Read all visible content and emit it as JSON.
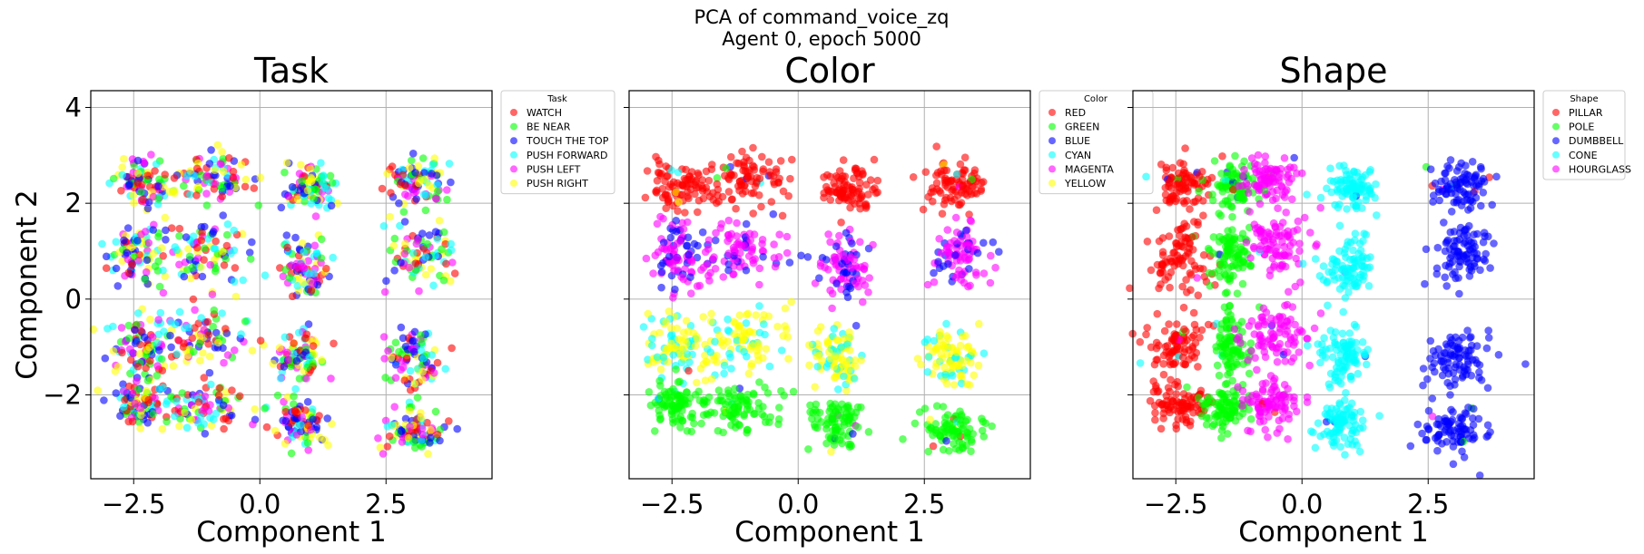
{
  "suptitle_line1": "PCA of command_voice_zq",
  "suptitle_line2": "Agent 0, epoch 5000",
  "chart_data": [
    {
      "type": "scatter",
      "title": "Task",
      "xlabel": "Component 1",
      "ylabel": "Component 2",
      "xlim": [
        -3.35,
        4.6
      ],
      "ylim": [
        -3.75,
        4.35
      ],
      "xticks": [
        -2.5,
        0.0,
        2.5
      ],
      "xtick_labels": [
        "−2.5",
        "0.0",
        "2.5"
      ],
      "yticks": [
        -2,
        0,
        2,
        4
      ],
      "ytick_labels": [
        "−2",
        "0",
        "2",
        "4"
      ],
      "grid": true,
      "legend_title": "Task",
      "legend_position": "outside-right",
      "series": [
        {
          "name": "WATCH",
          "color": "#ff0000"
        },
        {
          "name": "BE NEAR",
          "color": "#00ff00"
        },
        {
          "name": "TOUCH THE TOP",
          "color": "#0000ff"
        },
        {
          "name": "PUSH FORWARD",
          "color": "#00ffff"
        },
        {
          "name": "PUSH LEFT",
          "color": "#ff00ff"
        },
        {
          "name": "PUSH RIGHT",
          "color": "#ffff00"
        }
      ],
      "clusters": [
        {
          "x": -2.3,
          "y": 2.4,
          "sx": 0.3,
          "sy": 0.25
        },
        {
          "x": -1.0,
          "y": 2.5,
          "sx": 0.45,
          "sy": 0.28
        },
        {
          "x": 1.0,
          "y": 2.3,
          "sx": 0.25,
          "sy": 0.25
        },
        {
          "x": 3.1,
          "y": 2.4,
          "sx": 0.3,
          "sy": 0.25
        },
        {
          "x": -2.4,
          "y": 0.9,
          "sx": 0.3,
          "sy": 0.35
        },
        {
          "x": -1.1,
          "y": 1.0,
          "sx": 0.45,
          "sy": 0.35
        },
        {
          "x": 0.9,
          "y": 0.65,
          "sx": 0.25,
          "sy": 0.35
        },
        {
          "x": 3.2,
          "y": 0.95,
          "sx": 0.3,
          "sy": 0.35
        },
        {
          "x": -2.4,
          "y": -1.0,
          "sx": 0.3,
          "sy": 0.35
        },
        {
          "x": -1.1,
          "y": -0.85,
          "sx": 0.45,
          "sy": 0.35
        },
        {
          "x": 0.8,
          "y": -1.2,
          "sx": 0.25,
          "sy": 0.3
        },
        {
          "x": 3.1,
          "y": -1.25,
          "sx": 0.3,
          "sy": 0.3
        },
        {
          "x": -2.4,
          "y": -2.2,
          "sx": 0.3,
          "sy": 0.25
        },
        {
          "x": -1.2,
          "y": -2.25,
          "sx": 0.45,
          "sy": 0.25
        },
        {
          "x": 0.8,
          "y": -2.6,
          "sx": 0.25,
          "sy": 0.25
        },
        {
          "x": 3.0,
          "y": -2.75,
          "sx": 0.3,
          "sy": 0.25
        }
      ]
    },
    {
      "type": "scatter",
      "title": "Color",
      "xlabel": "Component 1",
      "ylabel": "",
      "xlim": [
        -3.35,
        4.6
      ],
      "ylim": [
        -3.75,
        4.35
      ],
      "xticks": [
        -2.5,
        0.0,
        2.5
      ],
      "xtick_labels": [
        "−2.5",
        "0.0",
        "2.5"
      ],
      "yticks": [
        -2,
        0,
        2,
        4
      ],
      "ytick_labels": [],
      "grid": true,
      "legend_title": "Color",
      "legend_position": "outside-right",
      "series": [
        {
          "name": "RED",
          "color": "#ff0000"
        },
        {
          "name": "GREEN",
          "color": "#00ff00"
        },
        {
          "name": "BLUE",
          "color": "#0000ff"
        },
        {
          "name": "CYAN",
          "color": "#00ffff"
        },
        {
          "name": "MAGENTA",
          "color": "#ff00ff"
        },
        {
          "name": "YELLOW",
          "color": "#ffff00"
        }
      ],
      "clusters": [
        {
          "x": -2.3,
          "y": 2.4,
          "sx": 0.3,
          "sy": 0.25,
          "c": [
            "RED"
          ]
        },
        {
          "x": -1.0,
          "y": 2.5,
          "sx": 0.45,
          "sy": 0.28,
          "c": [
            "RED"
          ]
        },
        {
          "x": 1.0,
          "y": 2.3,
          "sx": 0.25,
          "sy": 0.25,
          "c": [
            "RED"
          ]
        },
        {
          "x": 3.1,
          "y": 2.4,
          "sx": 0.3,
          "sy": 0.25,
          "c": [
            "RED"
          ]
        },
        {
          "x": -2.4,
          "y": 0.9,
          "sx": 0.3,
          "sy": 0.35,
          "c": [
            "MAGENTA",
            "BLUE"
          ]
        },
        {
          "x": -1.1,
          "y": 1.0,
          "sx": 0.45,
          "sy": 0.35,
          "c": [
            "MAGENTA",
            "BLUE"
          ]
        },
        {
          "x": 0.9,
          "y": 0.65,
          "sx": 0.25,
          "sy": 0.35,
          "c": [
            "MAGENTA",
            "BLUE"
          ]
        },
        {
          "x": 3.2,
          "y": 0.95,
          "sx": 0.3,
          "sy": 0.35,
          "c": [
            "MAGENTA",
            "BLUE"
          ]
        },
        {
          "x": -2.4,
          "y": -1.0,
          "sx": 0.3,
          "sy": 0.35,
          "c": [
            "YELLOW",
            "CYAN"
          ]
        },
        {
          "x": -1.1,
          "y": -0.85,
          "sx": 0.45,
          "sy": 0.35,
          "c": [
            "YELLOW",
            "CYAN"
          ]
        },
        {
          "x": 0.8,
          "y": -1.2,
          "sx": 0.25,
          "sy": 0.3,
          "c": [
            "YELLOW",
            "CYAN"
          ]
        },
        {
          "x": 3.1,
          "y": -1.25,
          "sx": 0.3,
          "sy": 0.3,
          "c": [
            "YELLOW",
            "CYAN"
          ]
        },
        {
          "x": -2.4,
          "y": -2.2,
          "sx": 0.3,
          "sy": 0.25,
          "c": [
            "GREEN"
          ]
        },
        {
          "x": -1.2,
          "y": -2.25,
          "sx": 0.45,
          "sy": 0.25,
          "c": [
            "GREEN"
          ]
        },
        {
          "x": 0.8,
          "y": -2.6,
          "sx": 0.25,
          "sy": 0.25,
          "c": [
            "GREEN"
          ]
        },
        {
          "x": 3.0,
          "y": -2.75,
          "sx": 0.3,
          "sy": 0.25,
          "c": [
            "GREEN"
          ]
        }
      ]
    },
    {
      "type": "scatter",
      "title": "Shape",
      "xlabel": "Component 1",
      "ylabel": "",
      "xlim": [
        -3.35,
        4.6
      ],
      "ylim": [
        -3.75,
        4.35
      ],
      "xticks": [
        -2.5,
        0.0,
        2.5
      ],
      "xtick_labels": [
        "−2.5",
        "0.0",
        "2.5"
      ],
      "yticks": [
        -2,
        0,
        2,
        4
      ],
      "ytick_labels": [],
      "grid": true,
      "legend_title": "Shape",
      "legend_position": "outside-right",
      "series": [
        {
          "name": "PILLAR",
          "color": "#ff0000"
        },
        {
          "name": "POLE",
          "color": "#00ff00"
        },
        {
          "name": "DUMBBELL",
          "color": "#0000ff"
        },
        {
          "name": "CONE",
          "color": "#00ffff"
        },
        {
          "name": "HOURGLASS",
          "color": "#ff00ff"
        }
      ],
      "clusters": [
        {
          "x": -2.3,
          "y": 2.4,
          "sx": 0.3,
          "sy": 0.25,
          "c": [
            "PILLAR"
          ]
        },
        {
          "x": -1.35,
          "y": 2.35,
          "sx": 0.2,
          "sy": 0.25,
          "c": [
            "POLE"
          ]
        },
        {
          "x": -0.6,
          "y": 2.5,
          "sx": 0.3,
          "sy": 0.25,
          "c": [
            "HOURGLASS"
          ]
        },
        {
          "x": 1.0,
          "y": 2.3,
          "sx": 0.25,
          "sy": 0.25,
          "c": [
            "CONE"
          ]
        },
        {
          "x": 3.1,
          "y": 2.4,
          "sx": 0.3,
          "sy": 0.25,
          "c": [
            "DUMBBELL"
          ]
        },
        {
          "x": -2.4,
          "y": 0.9,
          "sx": 0.3,
          "sy": 0.35,
          "c": [
            "PILLAR"
          ]
        },
        {
          "x": -1.4,
          "y": 0.9,
          "sx": 0.2,
          "sy": 0.35,
          "c": [
            "POLE"
          ]
        },
        {
          "x": -0.5,
          "y": 1.1,
          "sx": 0.3,
          "sy": 0.35,
          "c": [
            "HOURGLASS"
          ]
        },
        {
          "x": 0.9,
          "y": 0.65,
          "sx": 0.25,
          "sy": 0.35,
          "c": [
            "CONE"
          ]
        },
        {
          "x": 3.2,
          "y": 0.95,
          "sx": 0.3,
          "sy": 0.35,
          "c": [
            "DUMBBELL"
          ]
        },
        {
          "x": -2.5,
          "y": -1.0,
          "sx": 0.3,
          "sy": 0.35,
          "c": [
            "PILLAR"
          ]
        },
        {
          "x": -1.4,
          "y": -1.0,
          "sx": 0.2,
          "sy": 0.35,
          "c": [
            "POLE"
          ]
        },
        {
          "x": -0.5,
          "y": -0.8,
          "sx": 0.3,
          "sy": 0.35,
          "c": [
            "HOURGLASS"
          ]
        },
        {
          "x": 0.8,
          "y": -1.2,
          "sx": 0.25,
          "sy": 0.3,
          "c": [
            "CONE"
          ]
        },
        {
          "x": 3.1,
          "y": -1.25,
          "sx": 0.3,
          "sy": 0.3,
          "c": [
            "DUMBBELL"
          ]
        },
        {
          "x": -2.4,
          "y": -2.2,
          "sx": 0.3,
          "sy": 0.25,
          "c": [
            "PILLAR"
          ]
        },
        {
          "x": -1.5,
          "y": -2.3,
          "sx": 0.2,
          "sy": 0.25,
          "c": [
            "POLE"
          ]
        },
        {
          "x": -0.6,
          "y": -2.2,
          "sx": 0.3,
          "sy": 0.25,
          "c": [
            "HOURGLASS"
          ]
        },
        {
          "x": 0.8,
          "y": -2.6,
          "sx": 0.25,
          "sy": 0.25,
          "c": [
            "CONE"
          ]
        },
        {
          "x": 3.0,
          "y": -2.75,
          "sx": 0.3,
          "sy": 0.25,
          "c": [
            "DUMBBELL"
          ]
        }
      ]
    }
  ]
}
